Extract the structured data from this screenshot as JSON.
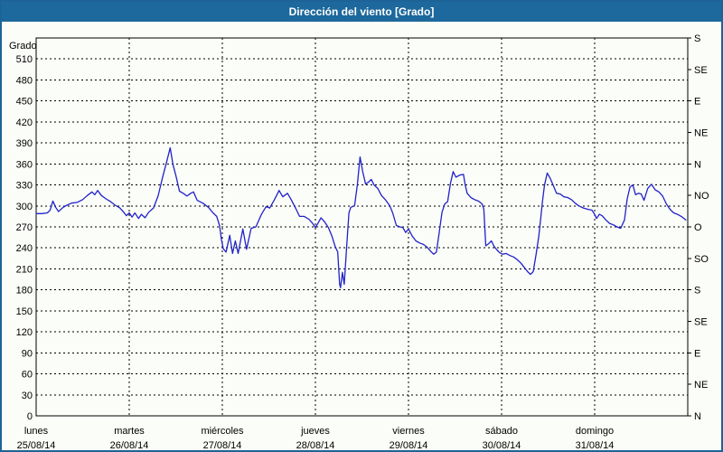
{
  "window": {
    "title": "Dirección del viento [Grado]"
  },
  "colors": {
    "titlebar_bg": "#1D689C",
    "titlebar_text": "#FFFFFF",
    "frame_border": "#1D6397",
    "background": "#FBFDF8",
    "grid": "#000000",
    "axis": "#000000",
    "text": "#000000",
    "line": "#2122C9"
  },
  "chart_data": {
    "type": "line",
    "title": "Dirección del viento [Grado]",
    "ylabel": "Grado",
    "ylim": [
      0,
      540
    ],
    "y_tick_step": 30,
    "y_ticks": [
      0,
      30,
      60,
      90,
      120,
      150,
      180,
      210,
      240,
      270,
      300,
      330,
      360,
      390,
      420,
      450,
      480,
      510
    ],
    "grid": "dashed",
    "right_axis": {
      "tick_step": 45,
      "labels": [
        {
          "value": 0,
          "label": "N"
        },
        {
          "value": 45,
          "label": "NE"
        },
        {
          "value": 90,
          "label": "E"
        },
        {
          "value": 135,
          "label": "SE"
        },
        {
          "value": 180,
          "label": "S"
        },
        {
          "value": 225,
          "label": "SO"
        },
        {
          "value": 270,
          "label": "O"
        },
        {
          "value": 315,
          "label": "NO"
        },
        {
          "value": 360,
          "label": "N"
        },
        {
          "value": 405,
          "label": "NE"
        },
        {
          "value": 450,
          "label": "E"
        },
        {
          "value": 495,
          "label": "SE"
        },
        {
          "value": 540,
          "label": "S"
        }
      ]
    },
    "xlim": [
      0,
      7
    ],
    "x_axis_days": [
      {
        "name": "lunes",
        "date": "25/08/14"
      },
      {
        "name": "martes",
        "date": "26/08/14"
      },
      {
        "name": "miércoles",
        "date": "27/08/14"
      },
      {
        "name": "jueves",
        "date": "28/08/14"
      },
      {
        "name": "viernes",
        "date": "29/08/14"
      },
      {
        "name": "sábado",
        "date": "30/08/14"
      },
      {
        "name": "domingo",
        "date": "31/08/14"
      }
    ],
    "series": [
      {
        "name": "Dirección del viento",
        "color": "#2122C9",
        "x_unit": "days_from_25_08_14",
        "points": [
          [
            0.0,
            289
          ],
          [
            0.06,
            289
          ],
          [
            0.12,
            290
          ],
          [
            0.15,
            294
          ],
          [
            0.18,
            307
          ],
          [
            0.21,
            298
          ],
          [
            0.24,
            292
          ],
          [
            0.29,
            298
          ],
          [
            0.33,
            301
          ],
          [
            0.38,
            304
          ],
          [
            0.44,
            305
          ],
          [
            0.5,
            309
          ],
          [
            0.55,
            315
          ],
          [
            0.6,
            320
          ],
          [
            0.63,
            316
          ],
          [
            0.66,
            322
          ],
          [
            0.7,
            315
          ],
          [
            0.75,
            310
          ],
          [
            0.8,
            306
          ],
          [
            0.85,
            301
          ],
          [
            0.9,
            297
          ],
          [
            0.94,
            291
          ],
          [
            0.97,
            286
          ],
          [
            1.0,
            290
          ],
          [
            1.03,
            284
          ],
          [
            1.06,
            290
          ],
          [
            1.1,
            282
          ],
          [
            1.13,
            288
          ],
          [
            1.17,
            283
          ],
          [
            1.21,
            291
          ],
          [
            1.26,
            297
          ],
          [
            1.31,
            314
          ],
          [
            1.36,
            342
          ],
          [
            1.4,
            362
          ],
          [
            1.44,
            383
          ],
          [
            1.47,
            359
          ],
          [
            1.5,
            344
          ],
          [
            1.54,
            321
          ],
          [
            1.58,
            318
          ],
          [
            1.62,
            314
          ],
          [
            1.66,
            318
          ],
          [
            1.69,
            320
          ],
          [
            1.73,
            308
          ],
          [
            1.79,
            304
          ],
          [
            1.85,
            298
          ],
          [
            1.9,
            290
          ],
          [
            1.94,
            285
          ],
          [
            1.97,
            272
          ],
          [
            1.99,
            252
          ],
          [
            2.01,
            239
          ],
          [
            2.04,
            234
          ],
          [
            2.08,
            258
          ],
          [
            2.11,
            232
          ],
          [
            2.14,
            250
          ],
          [
            2.17,
            232
          ],
          [
            2.22,
            267
          ],
          [
            2.26,
            238
          ],
          [
            2.31,
            268
          ],
          [
            2.36,
            270
          ],
          [
            2.42,
            288
          ],
          [
            2.47,
            299
          ],
          [
            2.51,
            297
          ],
          [
            2.56,
            309
          ],
          [
            2.61,
            322
          ],
          [
            2.65,
            313
          ],
          [
            2.7,
            318
          ],
          [
            2.74,
            309
          ],
          [
            2.79,
            296
          ],
          [
            2.83,
            285
          ],
          [
            2.88,
            285
          ],
          [
            2.93,
            281
          ],
          [
            2.97,
            275
          ],
          [
            3.0,
            269
          ],
          [
            3.03,
            276
          ],
          [
            3.06,
            283
          ],
          [
            3.1,
            277
          ],
          [
            3.14,
            269
          ],
          [
            3.18,
            256
          ],
          [
            3.21,
            243
          ],
          [
            3.24,
            234
          ],
          [
            3.26,
            188
          ],
          [
            3.27,
            183
          ],
          [
            3.29,
            205
          ],
          [
            3.31,
            188
          ],
          [
            3.33,
            230
          ],
          [
            3.34,
            250
          ],
          [
            3.36,
            290
          ],
          [
            3.38,
            298
          ],
          [
            3.42,
            300
          ],
          [
            3.45,
            330
          ],
          [
            3.48,
            370
          ],
          [
            3.51,
            348
          ],
          [
            3.54,
            331
          ],
          [
            3.57,
            334
          ],
          [
            3.6,
            338
          ],
          [
            3.63,
            330
          ],
          [
            3.67,
            325
          ],
          [
            3.71,
            315
          ],
          [
            3.75,
            309
          ],
          [
            3.8,
            300
          ],
          [
            3.83,
            290
          ],
          [
            3.87,
            272
          ],
          [
            3.91,
            270
          ],
          [
            3.94,
            269
          ],
          [
            3.97,
            262
          ],
          [
            4.0,
            267
          ],
          [
            4.04,
            257
          ],
          [
            4.08,
            250
          ],
          [
            4.12,
            247
          ],
          [
            4.16,
            245
          ],
          [
            4.2,
            241
          ],
          [
            4.24,
            235
          ],
          [
            4.27,
            231
          ],
          [
            4.3,
            234
          ],
          [
            4.33,
            262
          ],
          [
            4.36,
            291
          ],
          [
            4.39,
            303
          ],
          [
            4.42,
            306
          ],
          [
            4.45,
            332
          ],
          [
            4.48,
            349
          ],
          [
            4.51,
            341
          ],
          [
            4.55,
            344
          ],
          [
            4.59,
            345
          ],
          [
            4.61,
            330
          ],
          [
            4.63,
            318
          ],
          [
            4.67,
            312
          ],
          [
            4.71,
            309
          ],
          [
            4.75,
            307
          ],
          [
            4.79,
            303
          ],
          [
            4.81,
            295
          ],
          [
            4.83,
            243
          ],
          [
            4.86,
            246
          ],
          [
            4.89,
            250
          ],
          [
            4.92,
            242
          ],
          [
            4.95,
            237
          ],
          [
            4.98,
            233
          ],
          [
            5.01,
            231
          ],
          [
            5.05,
            232
          ],
          [
            5.09,
            229
          ],
          [
            5.13,
            227
          ],
          [
            5.17,
            223
          ],
          [
            5.21,
            218
          ],
          [
            5.25,
            211
          ],
          [
            5.28,
            206
          ],
          [
            5.31,
            202
          ],
          [
            5.34,
            206
          ],
          [
            5.37,
            230
          ],
          [
            5.4,
            257
          ],
          [
            5.42,
            282
          ],
          [
            5.44,
            307
          ],
          [
            5.46,
            329
          ],
          [
            5.49,
            347
          ],
          [
            5.52,
            340
          ],
          [
            5.55,
            331
          ],
          [
            5.59,
            318
          ],
          [
            5.63,
            317
          ],
          [
            5.67,
            313
          ],
          [
            5.71,
            312
          ],
          [
            5.75,
            309
          ],
          [
            5.79,
            304
          ],
          [
            5.83,
            300
          ],
          [
            5.88,
            297
          ],
          [
            5.93,
            295
          ],
          [
            5.97,
            294
          ],
          [
            6.0,
            288
          ],
          [
            6.02,
            282
          ],
          [
            6.05,
            288
          ],
          [
            6.08,
            286
          ],
          [
            6.12,
            280
          ],
          [
            6.16,
            275
          ],
          [
            6.2,
            273
          ],
          [
            6.24,
            270
          ],
          [
            6.28,
            268
          ],
          [
            6.32,
            280
          ],
          [
            6.35,
            310
          ],
          [
            6.38,
            327
          ],
          [
            6.41,
            330
          ],
          [
            6.44,
            316
          ],
          [
            6.47,
            318
          ],
          [
            6.5,
            317
          ],
          [
            6.53,
            308
          ],
          [
            6.57,
            325
          ],
          [
            6.61,
            331
          ],
          [
            6.65,
            323
          ],
          [
            6.69,
            320
          ],
          [
            6.73,
            314
          ],
          [
            6.77,
            303
          ],
          [
            6.81,
            295
          ],
          [
            6.85,
            290
          ],
          [
            6.89,
            288
          ],
          [
            6.93,
            285
          ],
          [
            6.96,
            282
          ],
          [
            6.98,
            280
          ]
        ]
      }
    ]
  }
}
